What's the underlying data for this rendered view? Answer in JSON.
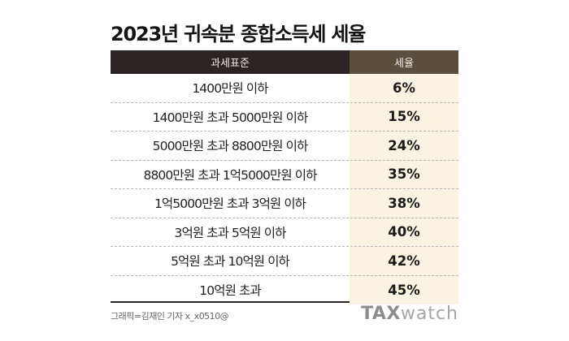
{
  "title": "2023년 귀속분 종합소득세 세율",
  "header": {
    "col1": "과세표준",
    "col2": "세율"
  },
  "rows": [
    {
      "bracket": "1400만원 이하",
      "rate": "6%"
    },
    {
      "bracket": "1400만원 초과 5000만원 이하",
      "rate": "15%"
    },
    {
      "bracket": "5000만원 초과 8800만원 이하",
      "rate": "24%"
    },
    {
      "bracket": "8800만원 초과 1억5000만원 이하",
      "rate": "35%"
    },
    {
      "bracket": "1억5000만원 초과 3억원 이하",
      "rate": "38%"
    },
    {
      "bracket": "3억원 초과 5억원 이하",
      "rate": "40%"
    },
    {
      "bracket": "5억원 초과 10억원 이하",
      "rate": "42%"
    },
    {
      "bracket": "10억원 초과",
      "rate": "45%"
    }
  ],
  "credit": "그래픽=김재인 기자 x_x0510@",
  "logo": {
    "tax": "TAX",
    "watch": "watch"
  },
  "colors": {
    "header_bg": "#2b2424",
    "rate_header_bg": "#5a4e3d",
    "rate_column_bg": "#fbf3e2"
  }
}
